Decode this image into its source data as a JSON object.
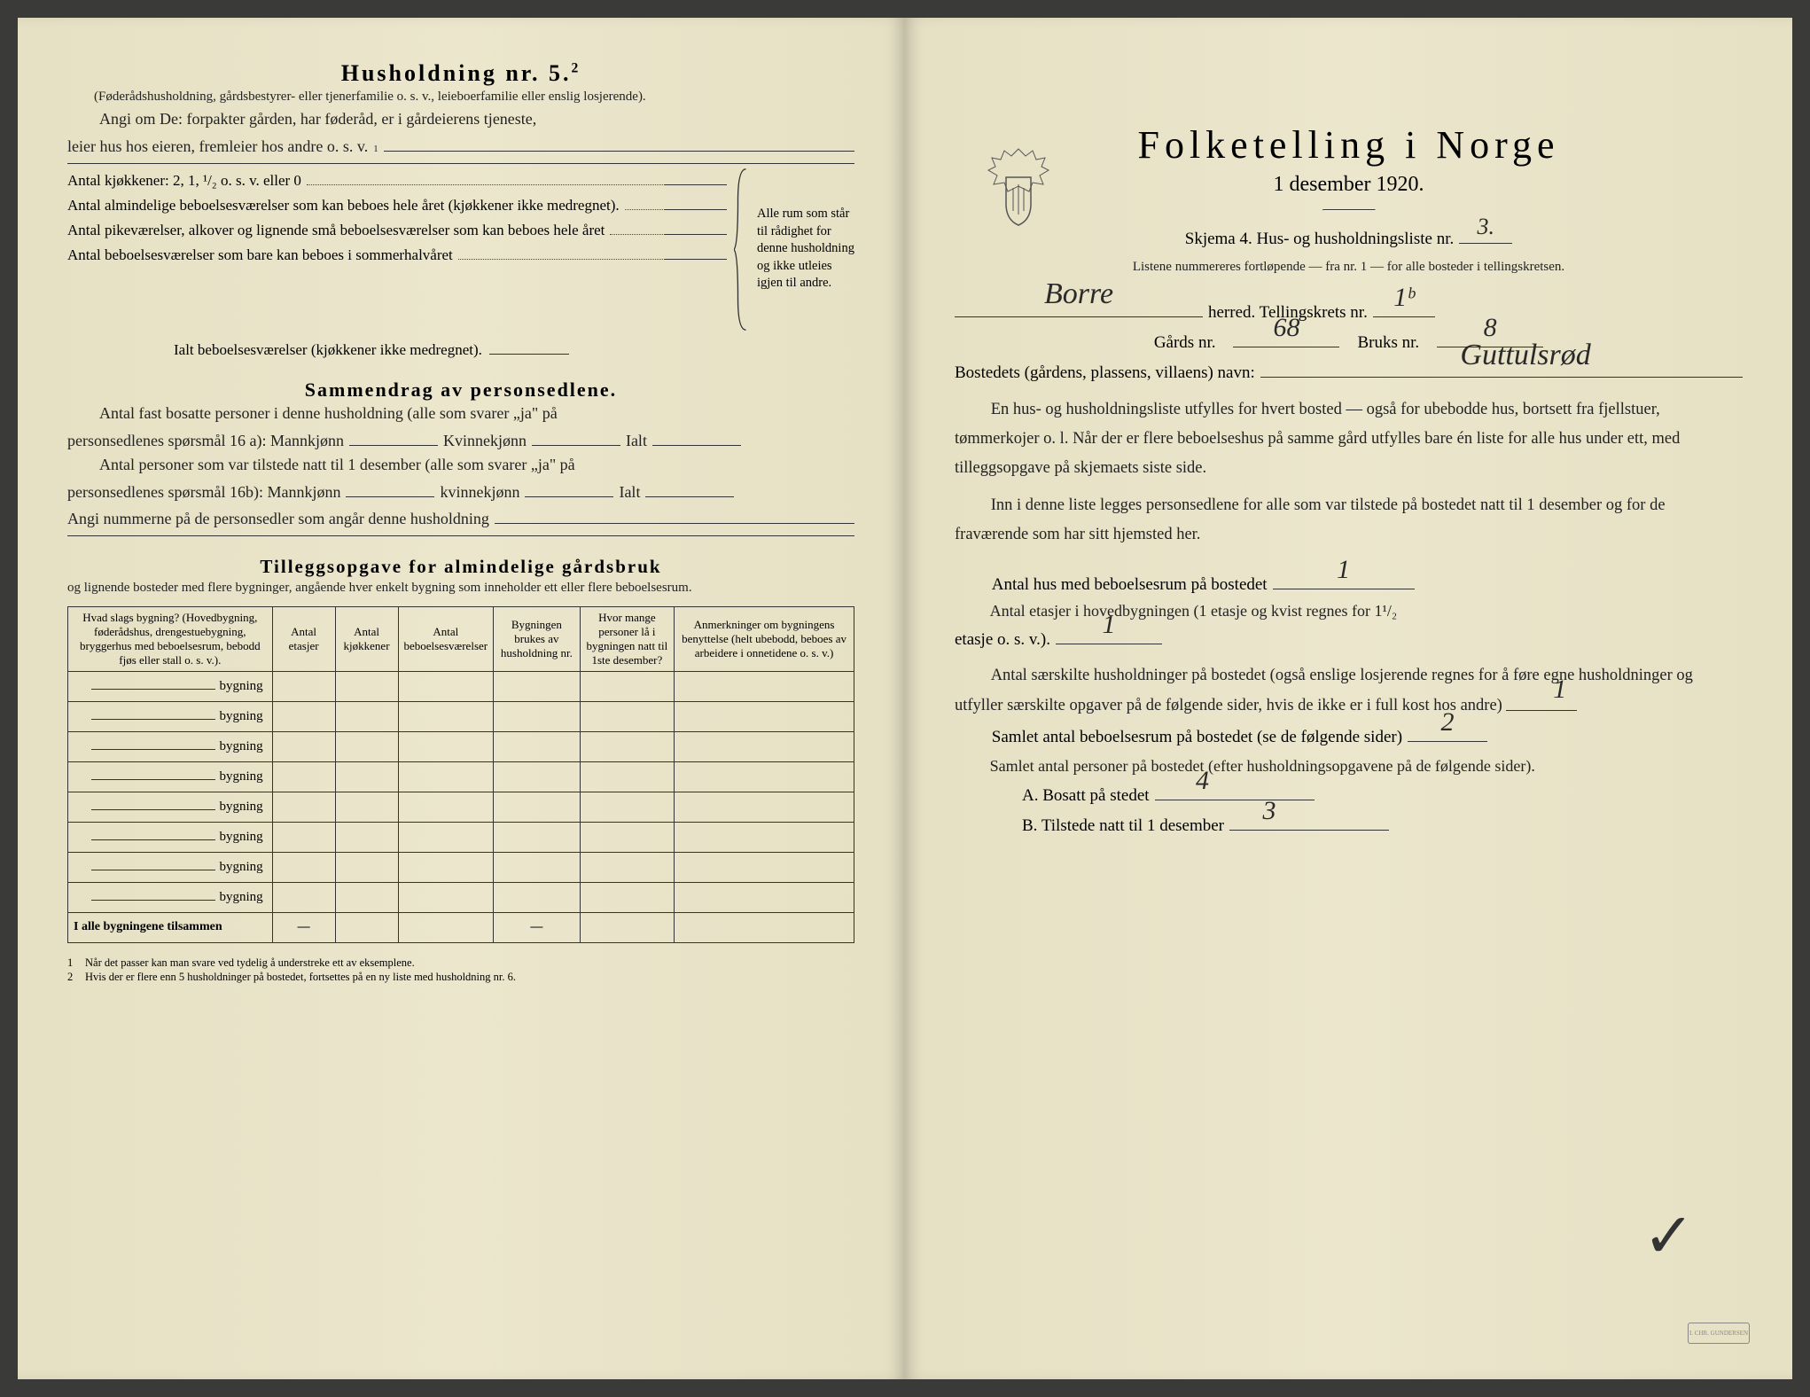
{
  "left": {
    "title": "Husholdning nr. 5.",
    "title_sup": "2",
    "intro_paren": "(Føderådshusholdning, gårdsbestyrer- eller tjenerfamilie o. s. v., leieboerfamilie eller enslig losjerende).",
    "intro_line1": "Angi om De: forpakter gården, har føderåd, er i gårdeierens tjeneste,",
    "intro_line2": "leier hus hos eieren, fremleier hos andre o. s. v.",
    "intro_line2_sup": "1",
    "kjokken_label": "Antal kjøkkener: 2, 1, ¹/₂ o. s. v. eller 0",
    "rows": [
      "Antal almindelige beboelsesværelser som kan beboes hele året (kjøkkener ikke medregnet).",
      "Antal pikeværelser, alkover og lignende små beboelsesværelser som kan beboes hele året",
      "Antal beboelsesværelser som bare kan beboes i sommerhalvåret"
    ],
    "brace_text": "Alle rum som står til rådighet for denne husholdning og ikke utleies igjen til andre.",
    "ialt_label": "Ialt beboelsesværelser (kjøkkener ikke medregnet).",
    "sammendrag_title": "Sammendrag av personsedlene.",
    "sammen_p1a": "Antal fast bosatte personer i denne husholdning (alle som svarer „ja\" på",
    "sammen_p1b": "personsedlenes spørsmål 16 a): Mannkjønn",
    "sammen_kv": "Kvinnekjønn",
    "sammen_ialt": "Ialt",
    "sammen_p2a": "Antal personer som var tilstede natt til 1 desember (alle som svarer „ja\" på",
    "sammen_p2b": "personsedlenes spørsmål 16b): Mannkjønn",
    "sammen_kv2": "kvinnekjønn",
    "sammen_angi": "Angi nummerne på de personsedler som angår denne husholdning",
    "tillegg_title": "Tilleggsopgave for almindelige gårdsbruk",
    "tillegg_sub": "og lignende bosteder med flere bygninger, angående hver enkelt bygning som inneholder ett eller flere beboelsesrum.",
    "table": {
      "headers": [
        "Hvad slags bygning?\n(Hovedbygning, føderådshus, drengestuebygning, bryggerhus med beboelsesrum, bebodd fjøs eller stall o. s. v.).",
        "Antal etasjer",
        "Antal kjøkkener",
        "Antal beboelsesværelser",
        "Bygningen brukes av husholdning nr.",
        "Hvor mange personer lå i bygningen natt til 1ste desember?",
        "Anmerkninger om bygningens benyttelse (helt ubebodd, beboes av arbeidere i onnetidene o. s. v.)"
      ],
      "bygning_word": "bygning",
      "row_count": 8,
      "total_label": "I alle bygningene tilsammen",
      "dash": "—"
    },
    "footnotes": [
      "Når det passer kan man svare ved tydelig å understreke ett av eksemplene.",
      "Hvis der er flere enn 5 husholdninger på bostedet, fortsettes på en ny liste med husholdning nr. 6."
    ]
  },
  "right": {
    "title": "Folketelling i Norge",
    "subtitle": "1 desember 1920.",
    "skjema_label": "Skjema 4.  Hus- og husholdningsliste nr.",
    "skjema_val": "3.",
    "listene": "Listene nummereres fortløpende — fra nr. 1 — for alle bosteder i tellingskretsen.",
    "herred_label": "herred.  Tellingskrets nr.",
    "herred_val": "Borre",
    "krets_val": "1ᵇ",
    "gards_label": "Gårds nr.",
    "gards_val": "68",
    "bruks_label": "Bruks nr.",
    "bruks_val": "8",
    "bosted_label": "Bostedets (gårdens, plassens, villaens) navn:",
    "bosted_val": "Guttulsrød",
    "para1": "En hus- og husholdningsliste utfylles for hvert bosted — også for ubebodde hus, bortsett fra fjellstuer, tømmerkojer o. l. Når der er flere beboelseshus på samme gård utfylles bare én liste for alle hus under ett, med tilleggsopgave på skjemaets siste side.",
    "para2": "Inn i denne liste legges personsedlene for alle som var tilstede på bostedet natt til 1 desember og for de fraværende som har sitt hjemsted her.",
    "q1": "Antal hus med beboelsesrum på bostedet",
    "q1_val": "1",
    "q2a": "Antal etasjer i hovedbygningen (1 etasje og kvist regnes for 1¹/₂",
    "q2b": "etasje o. s. v.).",
    "q2_val": "1",
    "q3": "Antal særskilte husholdninger på bostedet (også enslige losjerende regnes for å føre egne husholdninger og utfyller særskilte opgaver på de følgende sider, hvis de ikke er i full kost hos andre)",
    "q3_val": "1",
    "q4": "Samlet antal beboelsesrum på bostedet (se de følgende sider)",
    "q4_val": "2",
    "q5": "Samlet antal personer på bostedet (efter husholdningsopgavene på de følgende sider).",
    "qA": "A.  Bosatt på stedet",
    "qA_val": "4",
    "qB": "B.  Tilstede natt til 1 desember",
    "qB_val": "3",
    "stamp": "I. CHR. GUNDERSEN"
  },
  "colors": {
    "paper": "#e8e3c8",
    "ink": "#222222",
    "hand": "#2a2a2a"
  }
}
